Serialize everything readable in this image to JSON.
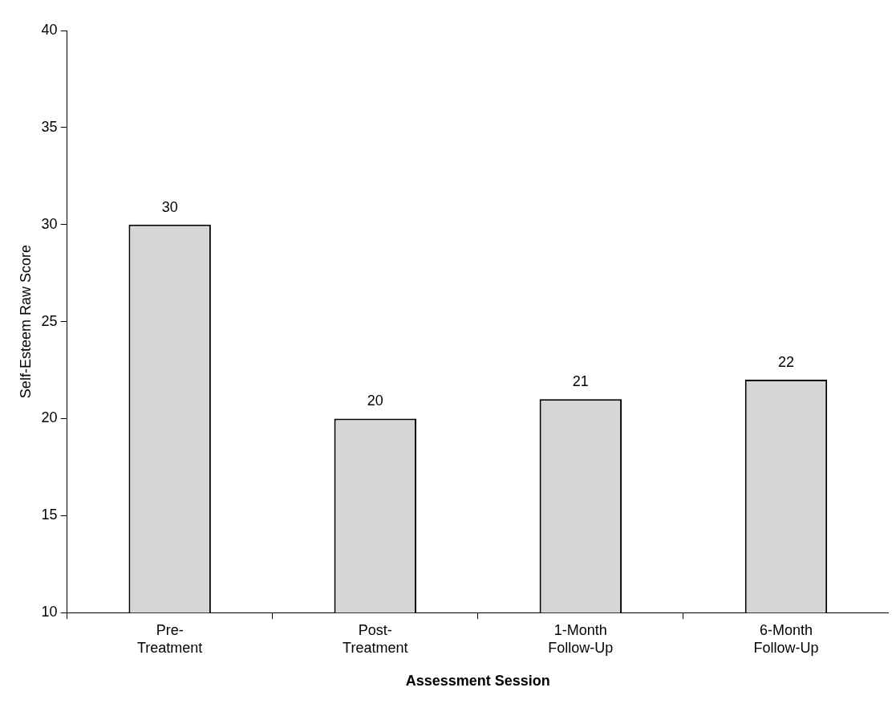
{
  "chart_data": {
    "type": "bar",
    "xlabel": "Assessment Session",
    "ylabel": "Self-Esteem Raw Score",
    "categories": [
      "Pre- Treatment",
      "Post- Treatment",
      "1-Month Follow-Up",
      "6-Month Follow-Up"
    ],
    "values": [
      30,
      20,
      21,
      22
    ],
    "color": "#d6d6d6",
    "ylim": [
      10,
      40
    ],
    "yticks": [
      10,
      15,
      20,
      25,
      30,
      35,
      40
    ],
    "grid": false,
    "legend": false,
    "data_labels": true
  }
}
